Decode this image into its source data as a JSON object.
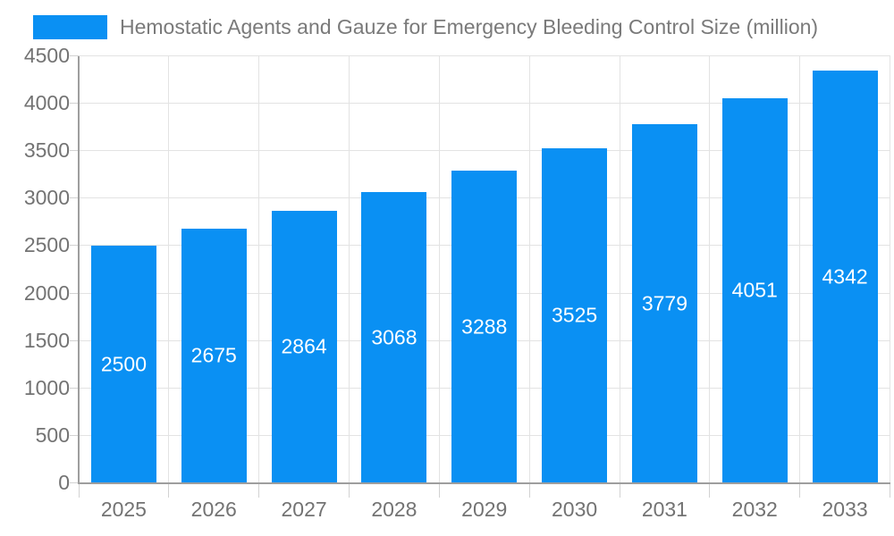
{
  "chart_data": {
    "type": "bar",
    "title": "Hemostatic Agents and Gauze for Emergency Bleeding Control Size (million)",
    "categories": [
      "2025",
      "2026",
      "2027",
      "2028",
      "2029",
      "2030",
      "2031",
      "2032",
      "2033"
    ],
    "values": [
      2500,
      2675,
      2864,
      3068,
      3288,
      3525,
      3779,
      4051,
      4342
    ],
    "series": [
      {
        "name": "Hemostatic Agents and Gauze for Emergency Bleeding Control Size (million)",
        "values": [
          2500,
          2675,
          2864,
          3068,
          3288,
          3525,
          3779,
          4051,
          4342
        ]
      }
    ],
    "xlabel": "",
    "ylabel": "",
    "ylim": [
      0,
      4500
    ],
    "ytick_step": 500,
    "ytick_labels": [
      "0",
      "500",
      "1000",
      "1500",
      "2000",
      "2500",
      "3000",
      "3500",
      "4000",
      "4500"
    ],
    "grid": true,
    "legend_position": "top-left",
    "bar_value_labels_position": "inside-center",
    "colors": {
      "bar": "#0a90f3",
      "bar_value_label": "#ffffff",
      "axis_text": "#737373",
      "legend_text": "#7a7a7a",
      "gridline": "#e3e3e3",
      "tick": "#d2d2d2",
      "axis_line": "#9e9e9e"
    }
  }
}
